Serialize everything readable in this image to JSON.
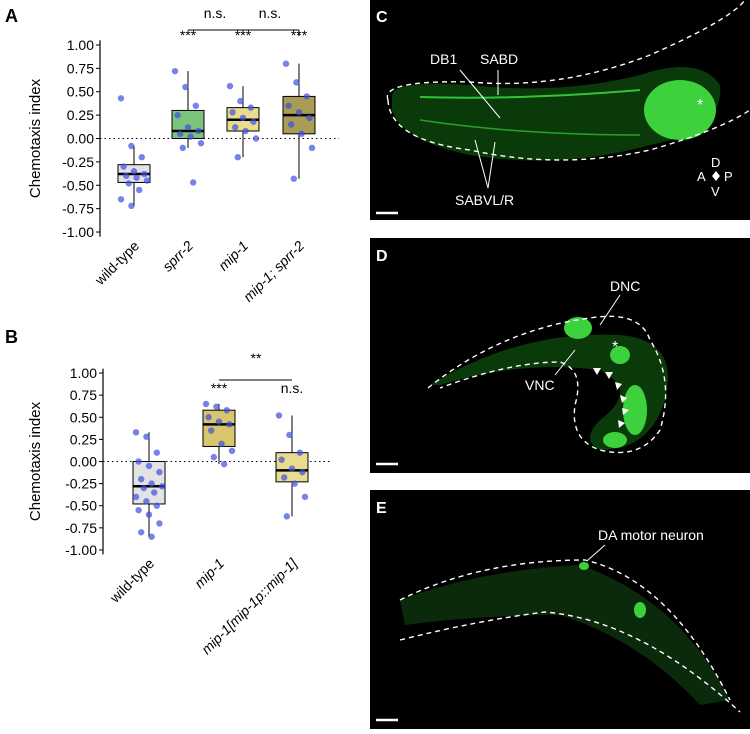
{
  "chart_data": [
    {
      "type": "box",
      "panel": "A",
      "y_label": "Chemotaxis index",
      "categories": [
        "wild-type",
        "sprr-2",
        "mip-1",
        "mip-1; sprr-2"
      ],
      "ylim": [
        -1.05,
        1.05
      ],
      "yticks": [
        {
          "value": -1,
          "label": "-1.00"
        },
        {
          "value": -0.75,
          "label": "-0.75"
        },
        {
          "value": -0.5,
          "label": "-0.50"
        },
        {
          "value": -0.25,
          "label": "-0.25"
        },
        {
          "value": 0,
          "label": "0.00"
        },
        {
          "value": 0.25,
          "label": "0.25"
        },
        {
          "value": 0.5,
          "label": "0.50"
        },
        {
          "value": 0.75,
          "label": "0.75"
        },
        {
          "value": 1,
          "label": "1.00"
        }
      ],
      "reference_line": 0,
      "boxes": [
        {
          "min": -0.72,
          "q1": -0.47,
          "median": -0.38,
          "q3": -0.28,
          "max": -0.08,
          "color": "#e3e3e6",
          "points": [
            0.43,
            -0.08,
            -0.2,
            -0.3,
            -0.35,
            -0.38,
            -0.4,
            -0.42,
            -0.45,
            -0.48,
            -0.55,
            -0.65,
            -0.72
          ]
        },
        {
          "min": -0.1,
          "q1": 0.0,
          "median": 0.08,
          "q3": 0.3,
          "max": 0.72,
          "color": "#7cc47e",
          "points": [
            0.72,
            0.55,
            0.35,
            0.25,
            0.12,
            0.08,
            0.05,
            0.02,
            -0.05,
            -0.1,
            -0.47
          ]
        },
        {
          "min": -0.2,
          "q1": 0.08,
          "median": 0.2,
          "q3": 0.33,
          "max": 0.56,
          "color": "#e9dc8f",
          "points": [
            0.56,
            0.4,
            0.33,
            0.28,
            0.22,
            0.18,
            0.12,
            0.08,
            0.0,
            -0.2
          ]
        },
        {
          "min": -0.43,
          "q1": 0.05,
          "median": 0.25,
          "q3": 0.45,
          "max": 0.8,
          "color": "#a99c55",
          "points": [
            0.8,
            0.6,
            0.45,
            0.35,
            0.28,
            0.22,
            0.15,
            0.05,
            -0.1,
            -0.43
          ]
        }
      ],
      "annotations": [
        "***",
        "***",
        "***",
        "n.s.",
        "n.s."
      ]
    },
    {
      "type": "box",
      "panel": "B",
      "y_label": "Chemotaxis index",
      "categories": [
        "wild-type",
        "mip-1",
        "mip-1[mip-1p::mip-1]"
      ],
      "ylim": [
        -1.05,
        1.05
      ],
      "yticks": [
        {
          "value": -1,
          "label": "-1.00"
        },
        {
          "value": -0.75,
          "label": "-0.75"
        },
        {
          "value": -0.5,
          "label": "-0.50"
        },
        {
          "value": -0.25,
          "label": "-0.25"
        },
        {
          "value": 0,
          "label": "0.00"
        },
        {
          "value": 0.25,
          "label": "0.25"
        },
        {
          "value": 0.5,
          "label": "0.50"
        },
        {
          "value": 0.75,
          "label": "0.75"
        },
        {
          "value": 1,
          "label": "1.00"
        }
      ],
      "reference_line": 0,
      "boxes": [
        {
          "min": -0.85,
          "q1": -0.48,
          "median": -0.28,
          "q3": 0.0,
          "max": 0.33,
          "color": "#e3e3e6",
          "points": [
            0.33,
            0.28,
            0.1,
            0.0,
            -0.05,
            -0.12,
            -0.2,
            -0.25,
            -0.28,
            -0.3,
            -0.35,
            -0.4,
            -0.45,
            -0.5,
            -0.55,
            -0.6,
            -0.7,
            -0.8,
            -0.85
          ]
        },
        {
          "min": -0.03,
          "q1": 0.17,
          "median": 0.42,
          "q3": 0.58,
          "max": 0.65,
          "color": "#d8c56c",
          "points": [
            0.65,
            0.62,
            0.58,
            0.5,
            0.45,
            0.42,
            0.35,
            0.2,
            0.12,
            0.05,
            -0.03
          ]
        },
        {
          "min": -0.62,
          "q1": -0.23,
          "median": -0.1,
          "q3": 0.1,
          "max": 0.52,
          "color": "#e9dc8f",
          "points": [
            0.52,
            0.3,
            0.1,
            0.02,
            -0.08,
            -0.12,
            -0.18,
            -0.25,
            -0.4,
            -0.62
          ]
        }
      ],
      "annotations": [
        "***",
        "n.s.",
        "**"
      ]
    }
  ],
  "panels": {
    "c": {
      "label": "C",
      "texts": [
        "DB1",
        "SABD",
        "SABVL/R",
        "*",
        "D",
        "A",
        "P",
        "V"
      ]
    },
    "d": {
      "label": "D",
      "texts": [
        "DNC",
        "VNC",
        "*"
      ]
    },
    "e": {
      "label": "E",
      "texts": [
        "DA motor neuron"
      ]
    }
  }
}
